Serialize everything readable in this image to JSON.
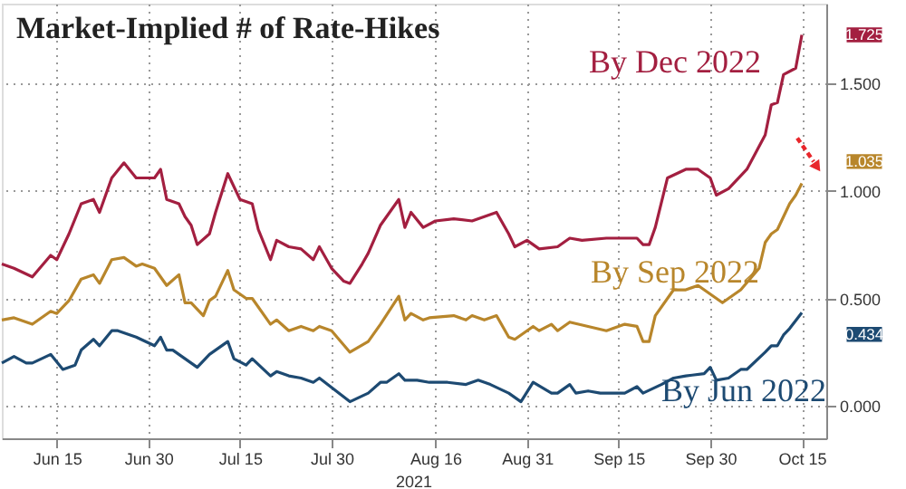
{
  "chart_data": {
    "type": "line",
    "title": "Market-Implied # of Rate-Hikes",
    "xlim": [
      "2021-06-06",
      "2021-10-19"
    ],
    "xticks": [
      {
        "value": "2021-06-15",
        "label": "Jun 15"
      },
      {
        "value": "2021-06-30",
        "label": "Jun 30"
      },
      {
        "value": "2021-07-15",
        "label": "Jul 15"
      },
      {
        "value": "2021-07-30",
        "label": "Jul 30"
      },
      {
        "value": "2021-08-16",
        "label": "Aug 16"
      },
      {
        "value": "2021-08-31",
        "label": "Aug 31"
      },
      {
        "value": "2021-09-15",
        "label": "Sep 15"
      },
      {
        "value": "2021-09-30",
        "label": "Sep 30"
      },
      {
        "value": "2021-10-15",
        "label": "Oct 15"
      }
    ],
    "ylim": [
      -0.15,
      1.87
    ],
    "yticks": [
      {
        "value": 0,
        "label": "0.000"
      },
      {
        "value": 0.5,
        "label": "0.500"
      },
      {
        "value": 1,
        "label": "1.000"
      },
      {
        "value": 1.5,
        "label": "1.500"
      }
    ],
    "grid": true,
    "marker": "none",
    "line_style": "solid",
    "series": [
      {
        "name": "By Dec 2022",
        "color": "#a31f40",
        "x": [
          "2021-06-06",
          "2021-06-08",
          "2021-06-11",
          "2021-06-14",
          "2021-06-15",
          "2021-06-17",
          "2021-06-19",
          "2021-06-21",
          "2021-06-22",
          "2021-06-24",
          "2021-06-26",
          "2021-06-28",
          "2021-07-01",
          "2021-07-02",
          "2021-07-03",
          "2021-07-05",
          "2021-07-06",
          "2021-07-07",
          "2021-07-08",
          "2021-07-10",
          "2021-07-11",
          "2021-07-13",
          "2021-07-15",
          "2021-07-17",
          "2021-07-18",
          "2021-07-20",
          "2021-07-21",
          "2021-07-23",
          "2021-07-25",
          "2021-07-27",
          "2021-07-28",
          "2021-07-30",
          "2021-08-01",
          "2021-08-02",
          "2021-08-04",
          "2021-08-05",
          "2021-08-07",
          "2021-08-10",
          "2021-08-11",
          "2021-08-12",
          "2021-08-14",
          "2021-08-16",
          "2021-08-19",
          "2021-08-22",
          "2021-08-26",
          "2021-08-28",
          "2021-08-29",
          "2021-08-31",
          "2021-09-02",
          "2021-09-05",
          "2021-09-07",
          "2021-09-09",
          "2021-09-13",
          "2021-09-18",
          "2021-09-19",
          "2021-09-20",
          "2021-09-21",
          "2021-09-23",
          "2021-09-26",
          "2021-09-28",
          "2021-09-30",
          "2021-10-01",
          "2021-10-03",
          "2021-10-06",
          "2021-10-09",
          "2021-10-10",
          "2021-10-11",
          "2021-10-12",
          "2021-10-14",
          "2021-10-15"
        ],
        "values": [
          0.66,
          0.64,
          0.6,
          0.7,
          0.68,
          0.8,
          0.94,
          0.96,
          0.9,
          1.06,
          1.13,
          1.06,
          1.06,
          1.1,
          0.96,
          0.94,
          0.88,
          0.84,
          0.75,
          0.8,
          0.9,
          1.08,
          0.96,
          0.94,
          0.82,
          0.68,
          0.77,
          0.74,
          0.73,
          0.68,
          0.74,
          0.64,
          0.58,
          0.57,
          0.66,
          0.71,
          0.84,
          0.96,
          0.83,
          0.9,
          0.83,
          0.86,
          0.87,
          0.86,
          0.9,
          0.8,
          0.74,
          0.77,
          0.73,
          0.74,
          0.78,
          0.77,
          0.78,
          0.78,
          0.75,
          0.75,
          0.83,
          1.06,
          1.1,
          1.1,
          1.06,
          0.98,
          1.01,
          1.1,
          1.26,
          1.4,
          1.41,
          1.54,
          1.57,
          1.725
        ]
      },
      {
        "name": "By Sep 2022",
        "color": "#b8862b",
        "x": [
          "2021-06-06",
          "2021-06-08",
          "2021-06-11",
          "2021-06-14",
          "2021-06-15",
          "2021-06-17",
          "2021-06-19",
          "2021-06-21",
          "2021-06-22",
          "2021-06-24",
          "2021-06-26",
          "2021-06-28",
          "2021-06-29",
          "2021-07-01",
          "2021-07-03",
          "2021-07-05",
          "2021-07-06",
          "2021-07-07",
          "2021-07-09",
          "2021-07-10",
          "2021-07-11",
          "2021-07-13",
          "2021-07-14",
          "2021-07-16",
          "2021-07-17",
          "2021-07-20",
          "2021-07-21",
          "2021-07-23",
          "2021-07-25",
          "2021-07-27",
          "2021-07-28",
          "2021-07-30",
          "2021-08-02",
          "2021-08-05",
          "2021-08-07",
          "2021-08-10",
          "2021-08-11",
          "2021-08-12",
          "2021-08-14",
          "2021-08-15",
          "2021-08-19",
          "2021-08-21",
          "2021-08-22",
          "2021-08-24",
          "2021-08-26",
          "2021-08-28",
          "2021-08-29",
          "2021-09-01",
          "2021-09-02",
          "2021-09-04",
          "2021-09-05",
          "2021-09-07",
          "2021-09-10",
          "2021-09-13",
          "2021-09-16",
          "2021-09-18",
          "2021-09-19",
          "2021-09-20",
          "2021-09-21",
          "2021-09-24",
          "2021-09-26",
          "2021-09-28",
          "2021-09-30",
          "2021-10-02",
          "2021-10-03",
          "2021-10-05",
          "2021-10-08",
          "2021-10-09",
          "2021-10-10",
          "2021-10-11",
          "2021-10-13",
          "2021-10-14",
          "2021-10-15"
        ],
        "values": [
          0.4,
          0.41,
          0.38,
          0.44,
          0.43,
          0.49,
          0.59,
          0.61,
          0.57,
          0.68,
          0.69,
          0.65,
          0.66,
          0.64,
          0.56,
          0.61,
          0.48,
          0.48,
          0.42,
          0.49,
          0.51,
          0.63,
          0.54,
          0.5,
          0.5,
          0.38,
          0.4,
          0.35,
          0.37,
          0.35,
          0.37,
          0.35,
          0.25,
          0.3,
          0.38,
          0.51,
          0.4,
          0.43,
          0.4,
          0.41,
          0.42,
          0.4,
          0.42,
          0.4,
          0.42,
          0.32,
          0.31,
          0.37,
          0.35,
          0.38,
          0.35,
          0.39,
          0.37,
          0.35,
          0.38,
          0.37,
          0.3,
          0.3,
          0.42,
          0.54,
          0.54,
          0.56,
          0.52,
          0.48,
          0.5,
          0.54,
          0.64,
          0.76,
          0.8,
          0.82,
          0.94,
          0.98,
          1.035
        ]
      },
      {
        "name": "By Jun 2022",
        "color": "#1d4a72",
        "x": [
          "2021-06-06",
          "2021-06-08",
          "2021-06-10",
          "2021-06-11",
          "2021-06-14",
          "2021-06-16",
          "2021-06-18",
          "2021-06-19",
          "2021-06-21",
          "2021-06-22",
          "2021-06-24",
          "2021-06-25",
          "2021-06-28",
          "2021-07-01",
          "2021-07-02",
          "2021-07-03",
          "2021-07-04",
          "2021-07-06",
          "2021-07-08",
          "2021-07-10",
          "2021-07-13",
          "2021-07-14",
          "2021-07-16",
          "2021-07-17",
          "2021-07-20",
          "2021-07-21",
          "2021-07-23",
          "2021-07-25",
          "2021-07-27",
          "2021-07-28",
          "2021-08-02",
          "2021-08-05",
          "2021-08-07",
          "2021-08-08",
          "2021-08-10",
          "2021-08-11",
          "2021-08-13",
          "2021-08-15",
          "2021-08-18",
          "2021-08-21",
          "2021-08-23",
          "2021-08-25",
          "2021-08-28",
          "2021-08-30",
          "2021-09-01",
          "2021-09-04",
          "2021-09-05",
          "2021-09-07",
          "2021-09-08",
          "2021-09-10",
          "2021-09-12",
          "2021-09-16",
          "2021-09-18",
          "2021-09-19",
          "2021-09-22",
          "2021-09-24",
          "2021-09-26",
          "2021-09-29",
          "2021-09-30",
          "2021-10-01",
          "2021-10-03",
          "2021-10-05",
          "2021-10-06",
          "2021-10-09",
          "2021-10-10",
          "2021-10-11",
          "2021-10-12",
          "2021-10-13",
          "2021-10-15"
        ],
        "values": [
          0.2,
          0.23,
          0.2,
          0.2,
          0.24,
          0.17,
          0.19,
          0.26,
          0.31,
          0.28,
          0.35,
          0.35,
          0.32,
          0.28,
          0.32,
          0.26,
          0.26,
          0.22,
          0.18,
          0.24,
          0.3,
          0.22,
          0.19,
          0.22,
          0.14,
          0.16,
          0.14,
          0.13,
          0.11,
          0.13,
          0.02,
          0.06,
          0.11,
          0.11,
          0.15,
          0.12,
          0.12,
          0.11,
          0.11,
          0.1,
          0.12,
          0.1,
          0.06,
          0.02,
          0.11,
          0.06,
          0.06,
          0.1,
          0.06,
          0.07,
          0.06,
          0.06,
          0.09,
          0.06,
          0.1,
          0.13,
          0.14,
          0.15,
          0.18,
          0.12,
          0.13,
          0.17,
          0.17,
          0.25,
          0.28,
          0.28,
          0.33,
          0.36,
          0.434
        ]
      }
    ],
    "annotations": [
      "2021",
      {
        "text": "1.725",
        "x": "2021-10-15",
        "y": 1.725
      },
      {
        "text": "1.035",
        "x": "2021-10-15",
        "y": 1.035
      },
      {
        "text": "0.434",
        "x": "2021-10-15",
        "y": 0.434
      }
    ]
  }
}
